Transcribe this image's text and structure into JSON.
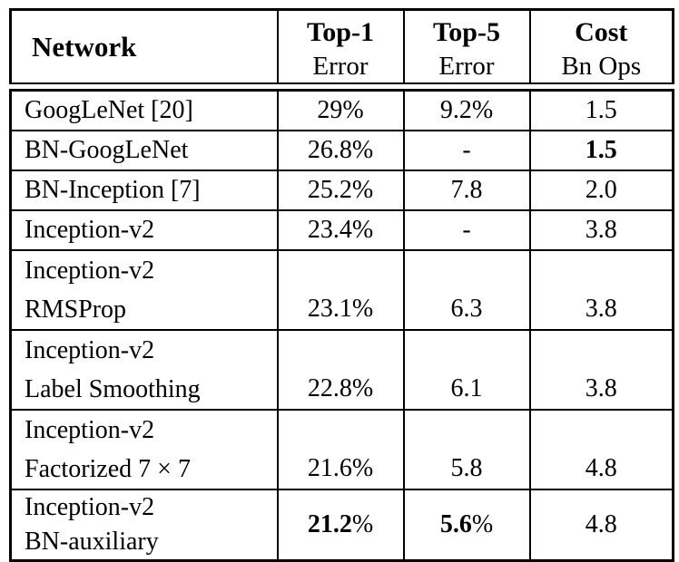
{
  "colors": {
    "background": "#ffffff",
    "text": "#000000",
    "border": "#000000"
  },
  "table": {
    "header": {
      "network": "Network",
      "top1_line1": "Top-1",
      "top1_line2": "Error",
      "top5_line1": "Top-5",
      "top5_line2": "Error",
      "cost_line1": "Cost",
      "cost_line2": "Bn Ops"
    },
    "rows": [
      {
        "network": "GoogLeNet [20]",
        "top1": "29%",
        "top5": "9.2%",
        "cost": "1.5"
      },
      {
        "network": "BN-GoogLeNet",
        "top1": "26.8%",
        "top5": "-",
        "cost": "1.5"
      },
      {
        "network": "BN-Inception [7]",
        "top1": "25.2%",
        "top5": "7.8",
        "cost": "2.0"
      },
      {
        "network": "Inception-v2",
        "top1": "23.4%",
        "top5": "-",
        "cost": "3.8"
      },
      {
        "network_line1": "Inception-v2",
        "network_line2": "RMSProp",
        "top1": "23.1%",
        "top5": "6.3",
        "cost": "3.8"
      },
      {
        "network_line1": "Inception-v2",
        "network_line2": "Label Smoothing",
        "top1": "22.8%",
        "top5": "6.1",
        "cost": "3.8"
      },
      {
        "network_line1": "Inception-v2",
        "network_line2": "Factorized 7 × 7",
        "top1": "21.6%",
        "top5": "5.8",
        "cost": "4.8"
      },
      {
        "network_line1": "Inception-v2",
        "network_line2": "BN-auxiliary",
        "top1_bold": "21.2",
        "top1_suffix": "%",
        "top5_bold": "5.6",
        "top5_suffix": "%",
        "cost": "4.8"
      }
    ],
    "bold_cells_note": "row index 1 cost is bold; row index 7 top1/top5 numbers are bold"
  }
}
